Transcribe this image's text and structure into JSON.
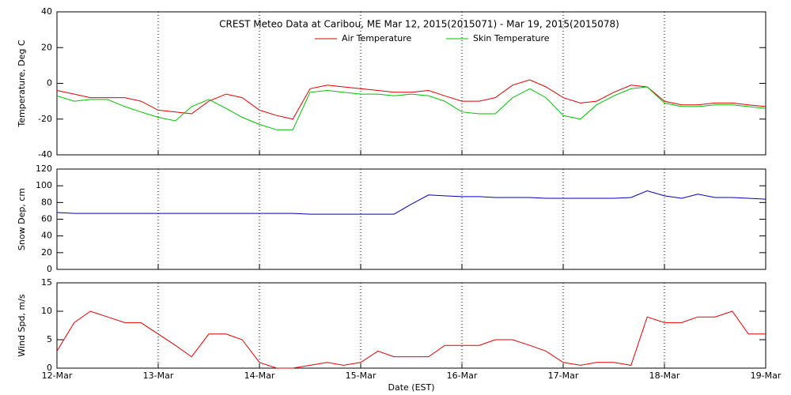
{
  "chart_data": [
    {
      "type": "line",
      "title": "CREST Meteo Data at Caribou, ME   Mar 12, 2015(2015071) - Mar 19, 2015(2015078)",
      "y_label": "Temperature, Deg C",
      "x": [
        12,
        12.17,
        12.33,
        12.5,
        12.67,
        12.83,
        13,
        13.17,
        13.33,
        13.5,
        13.67,
        13.83,
        14,
        14.17,
        14.33,
        14.5,
        14.67,
        14.83,
        15,
        15.17,
        15.33,
        15.5,
        15.67,
        15.83,
        16,
        16.17,
        16.33,
        16.5,
        16.67,
        16.83,
        17,
        17.17,
        17.33,
        17.5,
        17.67,
        17.83,
        18,
        18.17,
        18.33,
        18.5,
        18.67,
        18.83,
        19
      ],
      "series": [
        {
          "name": "Air Temperature",
          "color": "#e00000",
          "values": [
            -4,
            -6,
            -8,
            -8,
            -8,
            -10,
            -15,
            -16,
            -17,
            -10,
            -6,
            -8,
            -15,
            -18,
            -20,
            -3,
            -1,
            -2,
            -3,
            -4,
            -5,
            -5,
            -4,
            -7,
            -10,
            -10,
            -8,
            -1,
            2,
            -2,
            -8,
            -11,
            -10,
            -5,
            -1,
            -2,
            -10,
            -12,
            -12,
            -11,
            -11,
            -12,
            -13
          ]
        },
        {
          "name": "Skin Temperature",
          "color": "#00c000",
          "values": [
            -7,
            -10,
            -9,
            -9,
            -13,
            -16,
            -19,
            -21,
            -13,
            -9,
            -14,
            -19,
            -23,
            -26,
            -26,
            -5,
            -4,
            -5,
            -6,
            -6,
            -7,
            -6,
            -7,
            -10,
            -16,
            -17,
            -17,
            -8,
            -3,
            -8,
            -18,
            -20,
            -12,
            -7,
            -3,
            -2,
            -11,
            -13,
            -13,
            -12,
            -12,
            -13,
            -14
          ]
        }
      ],
      "xlim": [
        12,
        19
      ],
      "xticks": [
        12,
        13,
        14,
        15,
        16,
        17,
        18,
        19
      ],
      "ylim": [
        -40,
        40
      ],
      "yticks": [
        -40,
        -20,
        0,
        20,
        40
      ],
      "grid": true
    },
    {
      "type": "line",
      "y_label": "Snow Dep, cm",
      "x": [
        12,
        12.17,
        12.33,
        12.5,
        12.67,
        12.83,
        13,
        13.17,
        13.33,
        13.5,
        13.67,
        13.83,
        14,
        14.17,
        14.33,
        14.5,
        14.67,
        14.83,
        15,
        15.17,
        15.33,
        15.5,
        15.67,
        15.83,
        16,
        16.17,
        16.33,
        16.5,
        16.67,
        16.83,
        17,
        17.17,
        17.33,
        17.5,
        17.67,
        17.83,
        18,
        18.17,
        18.33,
        18.5,
        18.67,
        18.83,
        19
      ],
      "series": [
        {
          "name": "Snow Depth",
          "color": "#0000c0",
          "values": [
            68,
            67,
            67,
            67,
            67,
            67,
            67,
            67,
            67,
            67,
            67,
            67,
            67,
            67,
            67,
            66,
            66,
            66,
            66,
            66,
            66,
            78,
            89,
            88,
            87,
            87,
            86,
            86,
            86,
            85,
            85,
            85,
            85,
            85,
            86,
            94,
            88,
            85,
            90,
            86,
            86,
            85,
            84
          ]
        }
      ],
      "xlim": [
        12,
        19
      ],
      "xticks": [
        12,
        13,
        14,
        15,
        16,
        17,
        18,
        19
      ],
      "ylim": [
        0,
        120
      ],
      "yticks": [
        0,
        20,
        40,
        60,
        80,
        100,
        120
      ],
      "grid": true
    },
    {
      "type": "line",
      "y_label": "Wind Spd, m/s",
      "x_label": "Date (EST)",
      "x": [
        12,
        12.17,
        12.33,
        12.5,
        12.67,
        12.83,
        13,
        13.17,
        13.33,
        13.5,
        13.67,
        13.83,
        14,
        14.17,
        14.33,
        14.5,
        14.67,
        14.83,
        15,
        15.17,
        15.33,
        15.5,
        15.67,
        15.83,
        16,
        16.17,
        16.33,
        16.5,
        16.67,
        16.83,
        17,
        17.17,
        17.33,
        17.5,
        17.67,
        17.83,
        18,
        18.17,
        18.33,
        18.5,
        18.67,
        18.83,
        19
      ],
      "series": [
        {
          "name": "Wind Speed",
          "color": "#e00000",
          "values": [
            3,
            8,
            10,
            9,
            8,
            8,
            6,
            4,
            2,
            6,
            6,
            5,
            1,
            0,
            0,
            0.5,
            1,
            0.5,
            1,
            3,
            2,
            2,
            2,
            4,
            4,
            4,
            5,
            5,
            4,
            3,
            1,
            0.5,
            1,
            1,
            0.5,
            9,
            8,
            8,
            9,
            9,
            10,
            6,
            6
          ]
        }
      ],
      "xlim": [
        12,
        19
      ],
      "xticks": [
        {
          "value": 12,
          "label": "12-Mar"
        },
        {
          "value": 13,
          "label": "13-Mar"
        },
        {
          "value": 14,
          "label": "14-Mar"
        },
        {
          "value": 15,
          "label": "15-Mar"
        },
        {
          "value": 16,
          "label": "16-Mar"
        },
        {
          "value": 17,
          "label": "17-Mar"
        },
        {
          "value": 18,
          "label": "18-Mar"
        },
        {
          "value": 19,
          "label": "19-Mar"
        }
      ],
      "ylim": [
        0,
        15
      ],
      "yticks": [
        0,
        5,
        10,
        15
      ],
      "grid": true
    }
  ]
}
